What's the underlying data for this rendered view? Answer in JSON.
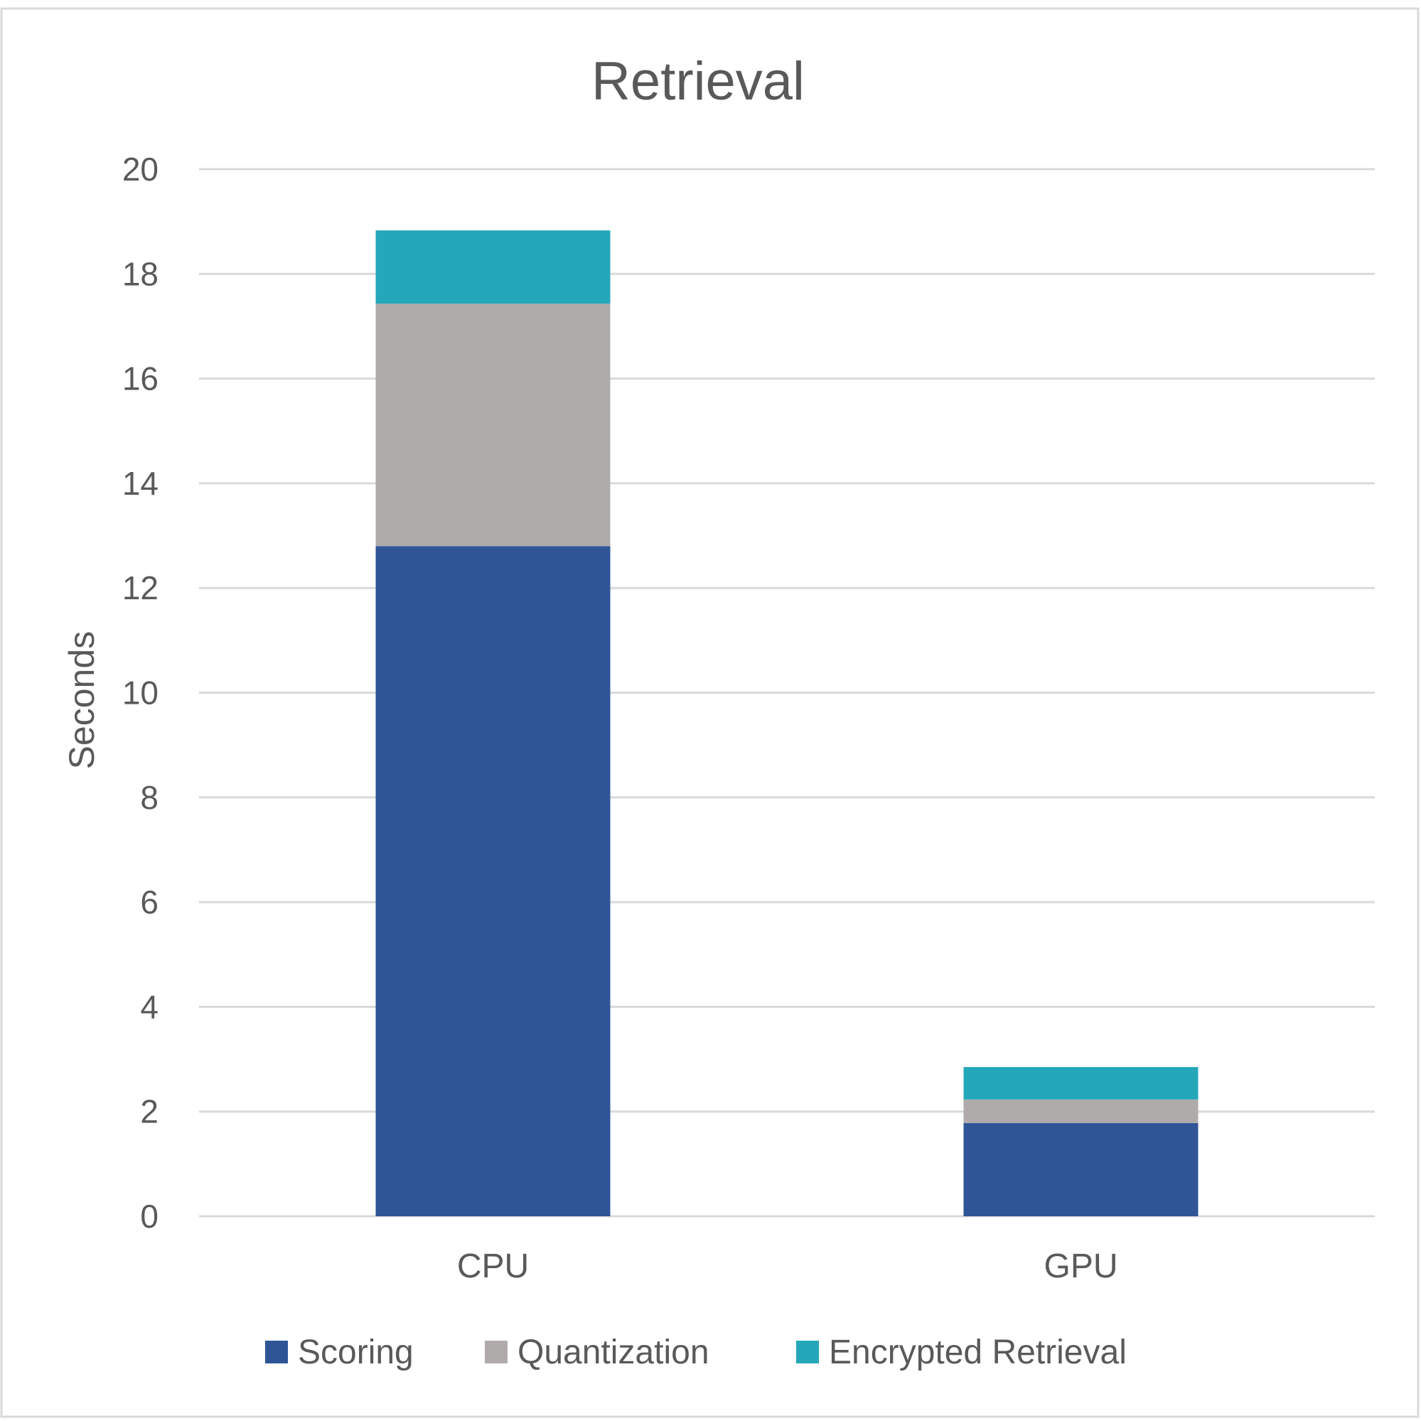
{
  "chart_data": {
    "type": "bar",
    "stacked": true,
    "title": "Retrieval",
    "xlabel": "",
    "ylabel": "Seconds",
    "ylim": [
      0,
      20
    ],
    "yticks": [
      0,
      2,
      4,
      6,
      8,
      10,
      12,
      14,
      16,
      18,
      20
    ],
    "grid": true,
    "legend_position": "bottom",
    "categories": [
      "CPU",
      "GPU"
    ],
    "series": [
      {
        "name": "Scoring",
        "color": "#2F5597",
        "values": [
          12.8,
          1.78
        ]
      },
      {
        "name": "Quantization",
        "color": "#AFABAB",
        "values": [
          4.63,
          0.45
        ]
      },
      {
        "name": "Encrypted Retrieval",
        "color": "#25A7BA",
        "values": [
          1.4,
          0.62
        ]
      }
    ]
  }
}
